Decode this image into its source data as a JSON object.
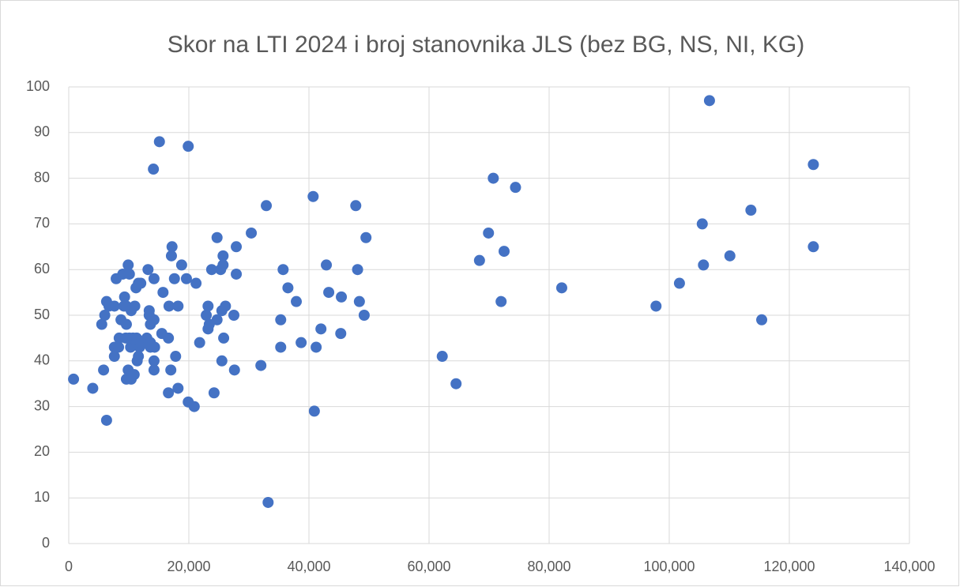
{
  "chart_data": {
    "type": "scatter",
    "title": "Skor na LTI 2024  i broj stanovnika JLS (bez BG, NS, NI, KG)",
    "color": "#4472c4",
    "grid": true,
    "xlim": [
      0,
      140000
    ],
    "ylim": [
      0,
      100
    ],
    "xticks": [
      0,
      {
        "value": 20000,
        "label": "20,000"
      },
      {
        "value": 40000,
        "label": "40,000"
      },
      {
        "value": 60000,
        "label": "60,000"
      },
      {
        "value": 80000,
        "label": "80,000"
      },
      {
        "value": 100000,
        "label": "100,000"
      },
      {
        "value": 120000,
        "label": "120,000"
      },
      {
        "value": 140000,
        "label": "140,000"
      }
    ],
    "yticks": [
      0,
      10,
      20,
      30,
      40,
      50,
      60,
      70,
      80,
      90,
      100
    ],
    "x": [
      800,
      4000,
      5500,
      5800,
      6000,
      6300,
      6300,
      6700,
      7600,
      7600,
      7600,
      7900,
      8300,
      8400,
      8700,
      9000,
      9200,
      9300,
      9500,
      9600,
      9600,
      9600,
      9900,
      9900,
      10100,
      10100,
      10300,
      10400,
      10400,
      10700,
      10900,
      11000,
      11200,
      11300,
      11300,
      11400,
      11600,
      11600,
      11800,
      12000,
      12000,
      13000,
      13200,
      13400,
      13400,
      13600,
      13600,
      13600,
      14100,
      14200,
      14200,
      14200,
      14200,
      14300,
      15100,
      15500,
      15700,
      16600,
      16600,
      16700,
      17000,
      17100,
      17200,
      17600,
      17800,
      18200,
      18200,
      18800,
      19600,
      19900,
      19900,
      20900,
      21200,
      21800,
      22900,
      23200,
      23200,
      23400,
      23800,
      24200,
      24700,
      24700,
      25300,
      25500,
      25500,
      25700,
      25700,
      25800,
      26100,
      27500,
      27600,
      27900,
      27900,
      30400,
      32000,
      32900,
      33200,
      35300,
      35300,
      35700,
      36500,
      37900,
      38700,
      40700,
      40900,
      41200,
      42000,
      42900,
      43300,
      45300,
      45400,
      47800,
      48100,
      48400,
      49200,
      49500,
      62200,
      64500,
      68400,
      69900,
      70700,
      72000,
      72500,
      74400,
      82100,
      97800,
      101700,
      105700,
      105500,
      106700,
      110100,
      113600,
      115400,
      124000,
      124000
    ],
    "values": [
      36,
      34,
      48,
      38,
      50,
      27,
      53,
      52,
      52,
      43,
      41,
      58,
      43,
      45,
      49,
      59,
      52,
      54,
      45,
      48,
      36,
      52,
      38,
      61,
      59,
      45,
      43,
      36,
      51,
      45,
      37,
      52,
      56,
      45,
      44,
      40,
      57,
      41,
      43,
      57,
      44,
      45,
      60,
      51,
      50,
      48,
      44,
      43,
      82,
      58,
      49,
      38,
      40,
      43,
      88,
      46,
      55,
      45,
      33,
      52,
      38,
      63,
      65,
      58,
      41,
      52,
      34,
      61,
      58,
      87,
      31,
      30,
      57,
      44,
      50,
      52,
      47,
      48,
      60,
      33,
      67,
      49,
      60,
      40,
      51,
      63,
      61,
      45,
      52,
      50,
      38,
      65,
      59,
      68,
      39,
      74,
      9,
      43,
      49,
      60,
      56,
      53,
      44,
      76,
      29,
      43,
      47,
      61,
      55,
      46,
      54,
      74,
      60,
      53,
      50,
      67,
      41,
      35,
      62,
      68,
      80,
      53,
      64,
      78,
      56,
      52,
      57,
      61,
      70,
      97,
      63,
      73,
      49,
      83,
      65
    ]
  }
}
